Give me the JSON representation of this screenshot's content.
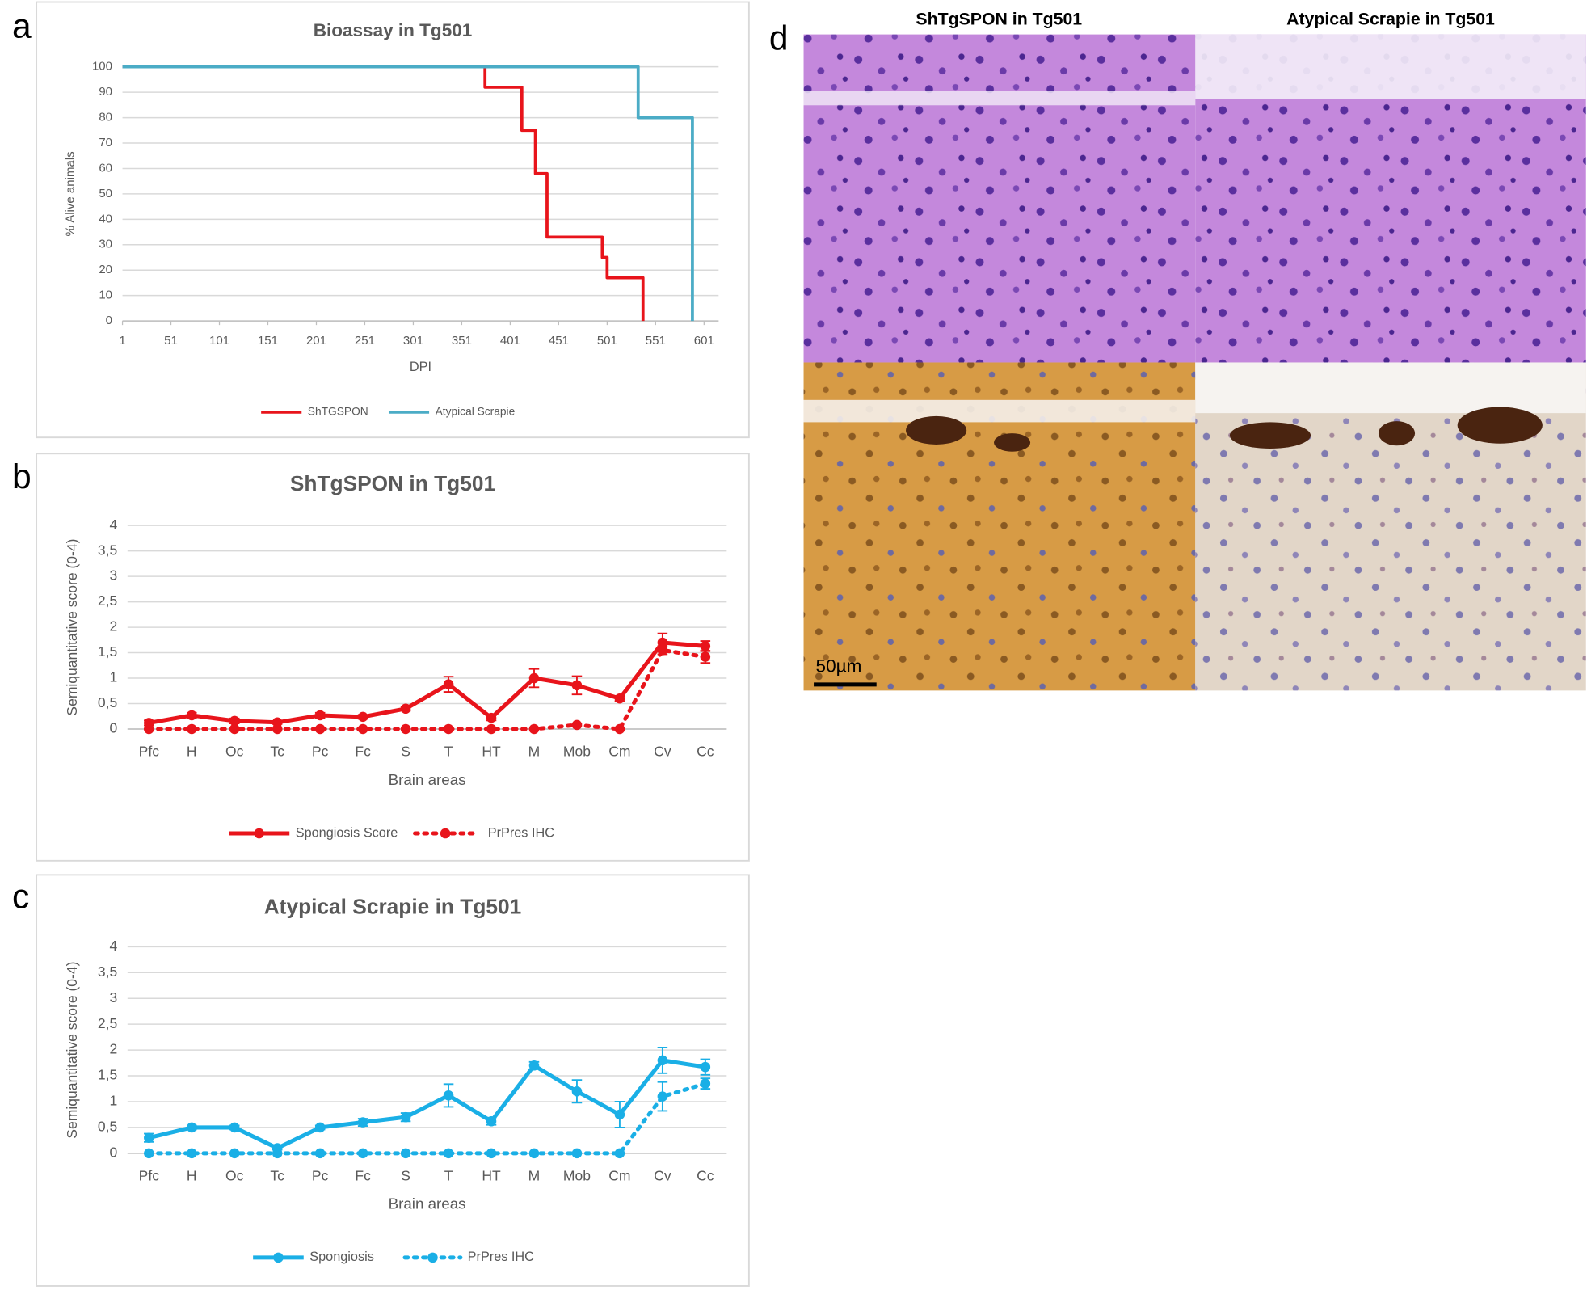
{
  "figure": {
    "panel_labels": [
      "a",
      "b",
      "c",
      "d"
    ],
    "micrograph_titles": [
      "ShTgSPON in Tg501",
      "Atypical Scrapie in Tg501"
    ],
    "scale_bar": "50µm"
  },
  "chart_data": [
    {
      "type": "line",
      "title": "Bioassay in Tg501",
      "xlabel": "DPI",
      "ylabel": "% Alive animals",
      "xlim": [
        1,
        616
      ],
      "xticks": [
        1,
        51,
        101,
        151,
        201,
        251,
        301,
        351,
        401,
        451,
        501,
        551,
        601
      ],
      "ylim": [
        0,
        100
      ],
      "yticks": [
        0,
        10,
        20,
        30,
        40,
        50,
        60,
        70,
        80,
        90,
        100
      ],
      "grid": true,
      "legend": "bottom",
      "series": [
        {
          "name": "ShTGSPON",
          "color": "#e8141b",
          "linestyle": "solid",
          "x": [
            1,
            375,
            375,
            413,
            413,
            427,
            427,
            439,
            439,
            496,
            496,
            501,
            501,
            538,
            538
          ],
          "values": [
            100,
            100,
            92,
            92,
            75,
            75,
            58,
            58,
            33,
            33,
            25,
            25,
            17,
            17,
            0
          ]
        },
        {
          "name": "Atypical Scrapie",
          "color": "#4bacc6",
          "linestyle": "solid",
          "x": [
            1,
            533,
            533,
            589,
            589
          ],
          "values": [
            100,
            100,
            80,
            80,
            0
          ]
        }
      ]
    },
    {
      "type": "line",
      "title": "ShTgSPON in Tg501",
      "xlabel": "Brain areas",
      "ylabel": "Semiquantitative score (0-4)",
      "categories": [
        "Pfc",
        "H",
        "Oc",
        "Tc",
        "Pc",
        "Fc",
        "S",
        "T",
        "HT",
        "M",
        "Mob",
        "Cm",
        "Cv",
        "Cc"
      ],
      "ylim": [
        0,
        4
      ],
      "yticks": [
        0,
        {
          "value": 0.5,
          "label": "0,5"
        },
        1,
        {
          "value": 1.5,
          "label": "1,5"
        },
        2,
        {
          "value": 2.5,
          "label": "2,5"
        },
        3,
        {
          "value": 3.5,
          "label": "3,5"
        },
        4
      ],
      "grid": true,
      "legend": "bottom",
      "series": [
        {
          "name": "Spongiosis Score",
          "color": "#e8141b",
          "linestyle": "solid",
          "marker": "circle",
          "values": [
            0.12,
            0.27,
            0.16,
            0.13,
            0.27,
            0.24,
            0.4,
            0.88,
            0.22,
            1.0,
            0.86,
            0.6,
            1.7,
            1.63
          ],
          "errors": [
            0.05,
            0.05,
            0.05,
            0.03,
            0.05,
            0.04,
            0.04,
            0.15,
            0.05,
            0.18,
            0.18,
            0.05,
            0.18,
            0.1
          ]
        },
        {
          "name": "PrPres IHC",
          "color": "#e8141b",
          "linestyle": "dotted",
          "marker": "circle",
          "values": [
            0,
            0,
            0,
            0,
            0,
            0,
            0,
            0,
            0,
            0,
            0.08,
            0,
            1.55,
            1.42
          ],
          "errors": [
            0,
            0,
            0,
            0,
            0,
            0,
            0,
            0,
            0,
            0,
            0.02,
            0,
            0.08,
            0.12
          ]
        }
      ]
    },
    {
      "type": "line",
      "title": "Atypical Scrapie in Tg501",
      "xlabel": "Brain areas",
      "ylabel": "Semiquantitative score (0-4)",
      "categories": [
        "Pfc",
        "H",
        "Oc",
        "Tc",
        "Pc",
        "Fc",
        "S",
        "T",
        "HT",
        "M",
        "Mob",
        "Cm",
        "Cv",
        "Cc"
      ],
      "ylim": [
        0,
        4
      ],
      "yticks": [
        0,
        {
          "value": 0.5,
          "label": "0,5"
        },
        1,
        {
          "value": 1.5,
          "label": "1,5"
        },
        2,
        {
          "value": 2.5,
          "label": "2,5"
        },
        3,
        {
          "value": 3.5,
          "label": "3,5"
        },
        4
      ],
      "grid": true,
      "legend": "bottom",
      "series": [
        {
          "name": "Spongiosis",
          "color": "#1aafe6",
          "linestyle": "solid",
          "marker": "circle",
          "values": [
            0.3,
            0.5,
            0.5,
            0.1,
            0.5,
            0.6,
            0.7,
            1.12,
            0.62,
            1.7,
            1.2,
            0.75,
            1.8,
            1.67
          ],
          "errors": [
            0.08,
            0.04,
            0.04,
            0.03,
            0.04,
            0.07,
            0.08,
            0.22,
            0.07,
            0.07,
            0.22,
            0.25,
            0.25,
            0.15
          ]
        },
        {
          "name": "PrPres IHC",
          "color": "#1aafe6",
          "linestyle": "dotted",
          "marker": "circle",
          "values": [
            0,
            0,
            0,
            0,
            0,
            0,
            0,
            0,
            0,
            0,
            0,
            0,
            1.1,
            1.35
          ],
          "errors": [
            0,
            0,
            0,
            0,
            0,
            0,
            0,
            0,
            0,
            0,
            0,
            0,
            0.28,
            0.1
          ]
        }
      ]
    }
  ]
}
